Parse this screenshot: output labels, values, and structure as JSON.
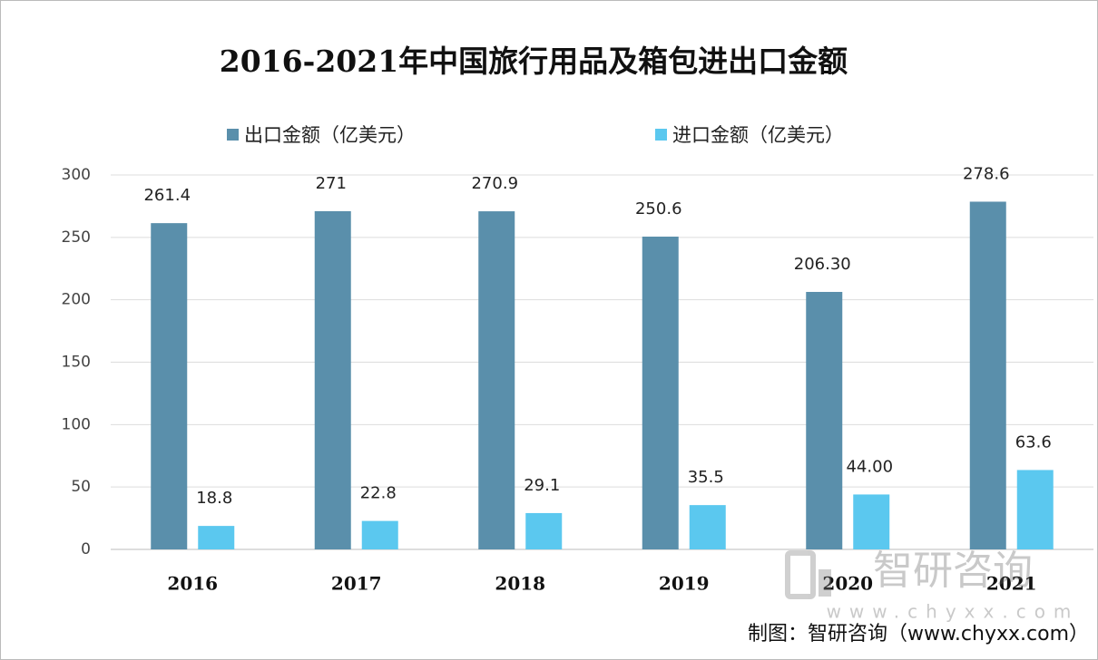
{
  "chart_data": {
    "type": "bar",
    "title": "2016-2021年中国旅行用品及箱包进出口金额",
    "categories": [
      "2016",
      "2017",
      "2018",
      "2019",
      "2020",
      "2021"
    ],
    "series": [
      {
        "name": "出口金额（亿美元）",
        "color": "#5a8fab",
        "values": [
          261.4,
          271,
          270.9,
          250.6,
          206.3,
          278.6
        ],
        "value_labels": [
          "261.4",
          "271",
          "270.9",
          "250.6",
          "206.30",
          "278.6"
        ]
      },
      {
        "name": "进口金额（亿美元）",
        "color": "#5bc8ef",
        "values": [
          18.8,
          22.8,
          29.1,
          35.5,
          44,
          63.6
        ],
        "value_labels": [
          "18.8",
          "22.8",
          "29.1",
          "35.5",
          "44.00",
          "63.6"
        ]
      }
    ],
    "ylim": [
      0,
      300
    ],
    "yticks": [
      0,
      50,
      100,
      150,
      200,
      250,
      300
    ],
    "grid": true,
    "legend": "top"
  },
  "watermark": {
    "name": "智研咨询",
    "url": "www.chyxx.com"
  },
  "source": "制图：智研咨询（www.chyxx.com）"
}
